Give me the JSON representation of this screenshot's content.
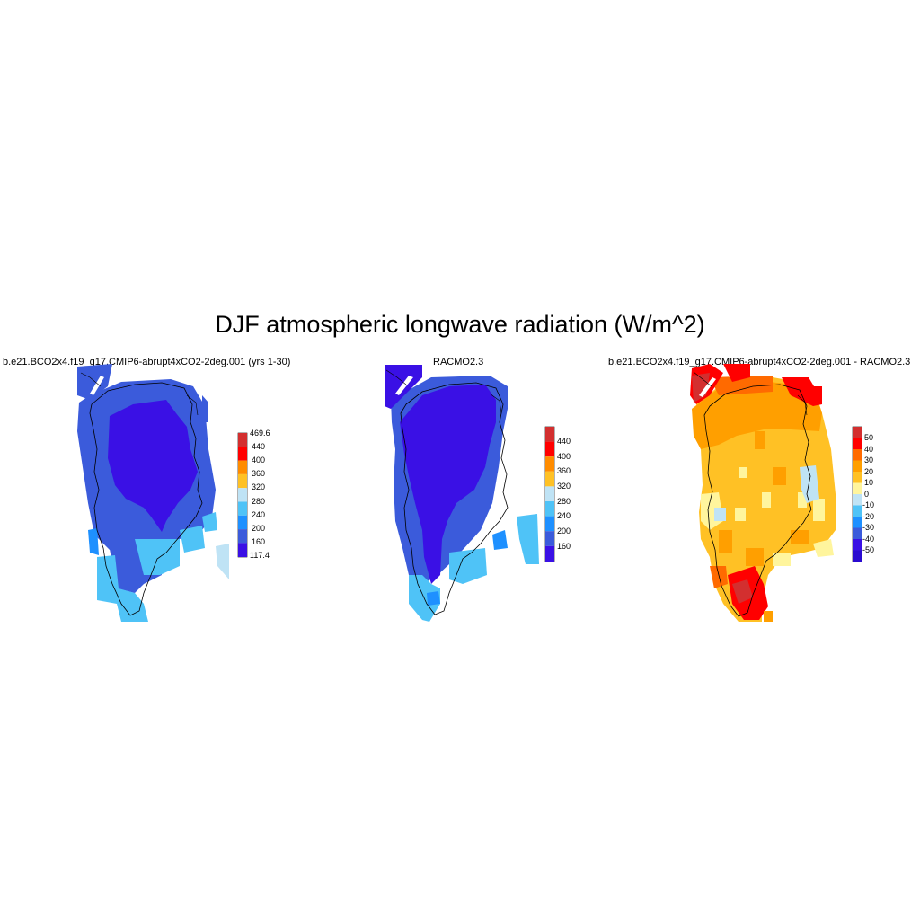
{
  "title": "DJF atmospheric longwave radiation (W/m^2)",
  "panels": [
    {
      "title": "b.e21.BCO2x4.f19_g17.CMIP6-abrupt4xCO2-2deg.001 (yrs 1-30)",
      "colorbar": {
        "labels": [
          "469.6",
          "440",
          "400",
          "360",
          "320",
          "280",
          "240",
          "200",
          "160",
          "117.4"
        ],
        "colors": [
          "#d32f2f",
          "#ff0000",
          "#ff8c00",
          "#ffc125",
          "#bfe3f5",
          "#4fc3f7",
          "#1e90ff",
          "#3b5bdb",
          "#3a10e5"
        ]
      }
    },
    {
      "title": "RACMO2.3",
      "colorbar": {
        "labels": [
          "440",
          "400",
          "360",
          "320",
          "280",
          "240",
          "200",
          "160"
        ],
        "colors": [
          "#d32f2f",
          "#ff0000",
          "#ff8c00",
          "#ffc125",
          "#bfe3f5",
          "#4fc3f7",
          "#1e90ff",
          "#3b5bdb",
          "#3a10e5"
        ]
      }
    },
    {
      "title": "b.e21.BCO2x4.f19_g17.CMIP6-abrupt4xCO2-2deg.001 - RACMO2.3",
      "colorbar": {
        "labels": [
          "50",
          "40",
          "30",
          "20",
          "10",
          "0",
          "-10",
          "-20",
          "-30",
          "-40",
          "-50"
        ],
        "colors": [
          "#d32f2f",
          "#ff0000",
          "#ff6a00",
          "#ff9f00",
          "#ffc125",
          "#fff59d",
          "#bfe3f5",
          "#4fc3f7",
          "#1e90ff",
          "#3b5bdb",
          "#3a10e5",
          "#2a0bd0"
        ]
      }
    }
  ]
}
